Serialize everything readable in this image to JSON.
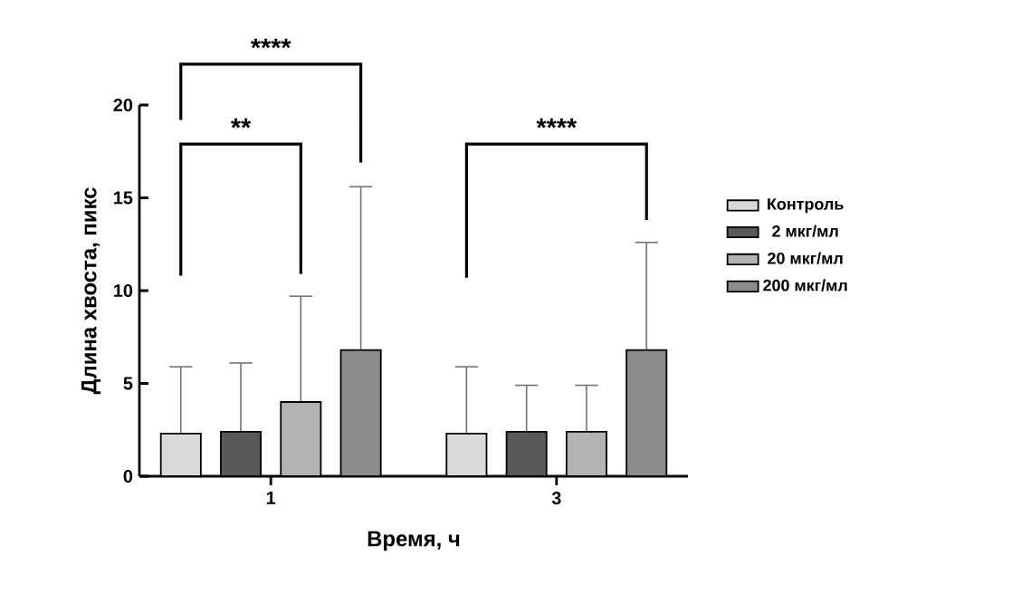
{
  "chart_data": {
    "type": "bar",
    "xlabel": "Время, ч",
    "ylabel": "Длина хвоста, пикс",
    "categories": [
      "1",
      "3"
    ],
    "series": [
      {
        "name": "Контроль",
        "color": "#d9d9d9",
        "values": [
          2.3,
          2.3
        ],
        "errors": [
          [
            2.3,
            5.9
          ],
          [
            2.3,
            5.9
          ]
        ]
      },
      {
        "name": "2 мкг/мл",
        "color": "#595959",
        "values": [
          2.4,
          2.4
        ],
        "errors": [
          [
            2.4,
            6.1
          ],
          [
            2.4,
            4.9
          ]
        ]
      },
      {
        "name": "20 мкг/мл",
        "color": "#b3b3b3",
        "values": [
          4.0,
          2.4
        ],
        "errors": [
          [
            4.0,
            9.7
          ],
          [
            2.4,
            4.9
          ]
        ]
      },
      {
        "name": "200 мкг/мл",
        "color": "#8c8c8c",
        "values": [
          6.8,
          6.8
        ],
        "errors": [
          [
            6.8,
            15.6
          ],
          [
            6.8,
            12.6
          ]
        ]
      }
    ],
    "ylim": [
      0,
      20
    ],
    "yticks": [
      0,
      5,
      10,
      15,
      20
    ],
    "legend": "right",
    "grid": false,
    "annotations": [
      "****",
      "**",
      "****"
    ]
  }
}
